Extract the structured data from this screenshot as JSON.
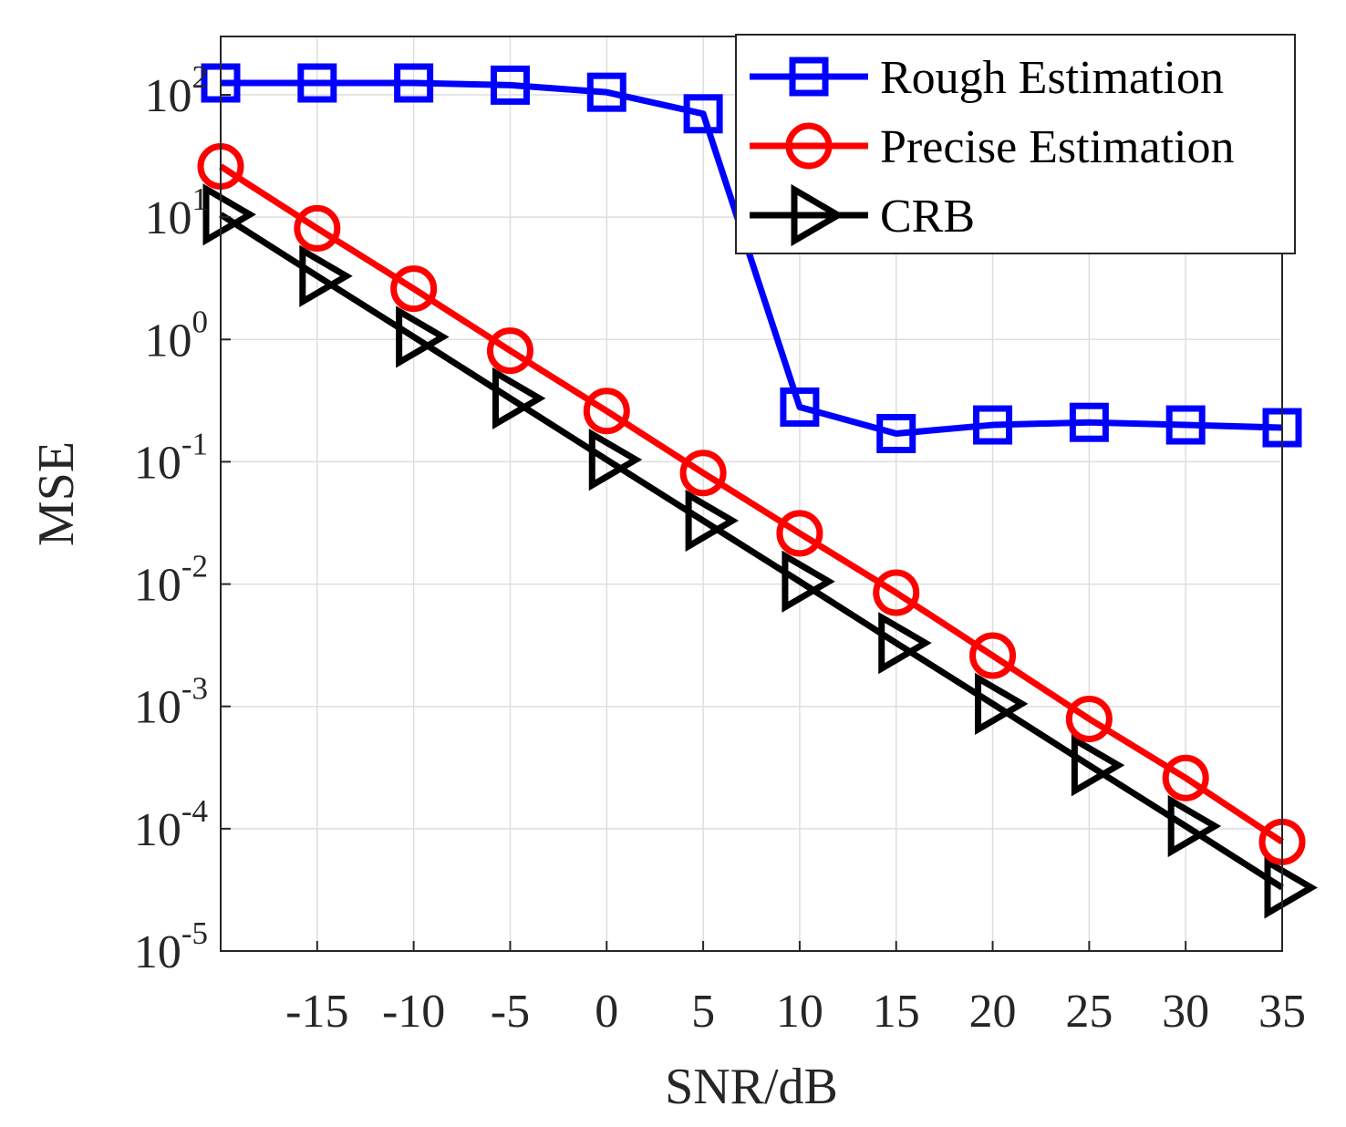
{
  "chart_data": {
    "type": "line",
    "title": "",
    "xlabel": "SNR/dB",
    "ylabel": "MSE",
    "yscale": "log",
    "xlim": [
      -20,
      35
    ],
    "ylim": [
      1e-05,
      300
    ],
    "grid": true,
    "legend_position": "top-right",
    "x": [
      -20,
      -15,
      -10,
      -5,
      0,
      5,
      10,
      15,
      20,
      25,
      30,
      35
    ],
    "x_ticks": [
      -15,
      -10,
      -5,
      0,
      5,
      10,
      15,
      20,
      25,
      30,
      35
    ],
    "x_tick_labels": [
      "-15",
      "-10",
      "-5",
      "0",
      "5",
      "10",
      "15",
      "20",
      "25",
      "30",
      "35"
    ],
    "y_ticks": [
      {
        "base": "10",
        "exp": "2",
        "value": 100
      },
      {
        "base": "10",
        "exp": "1",
        "value": 10
      },
      {
        "base": "10",
        "exp": "0",
        "value": 1
      },
      {
        "base": "10",
        "exp": "-1",
        "value": 0.1
      },
      {
        "base": "10",
        "exp": "-2",
        "value": 0.01
      },
      {
        "base": "10",
        "exp": "-3",
        "value": 0.001
      },
      {
        "base": "10",
        "exp": "-4",
        "value": 0.0001
      },
      {
        "base": "10",
        "exp": "-5",
        "value": 1e-05
      }
    ],
    "series": [
      {
        "name": "Rough Estimation",
        "color": "#0000ff",
        "marker": "square",
        "values": [
          125,
          125,
          125,
          120,
          105,
          70,
          0.28,
          0.17,
          0.2,
          0.21,
          0.2,
          0.19
        ]
      },
      {
        "name": "Precise Estimation",
        "color": "#ff0000",
        "marker": "circle",
        "values": [
          26,
          8.1,
          2.6,
          0.81,
          0.26,
          0.081,
          0.026,
          0.0085,
          0.0026,
          0.00079,
          0.00026,
          7.8e-05
        ]
      },
      {
        "name": "CRB",
        "color": "#000000",
        "marker": "triangle-right",
        "values": [
          10.5,
          3.3,
          1.05,
          0.33,
          0.104,
          0.033,
          0.0105,
          0.0033,
          0.00105,
          0.00033,
          0.000105,
          3.3e-05
        ]
      }
    ]
  }
}
